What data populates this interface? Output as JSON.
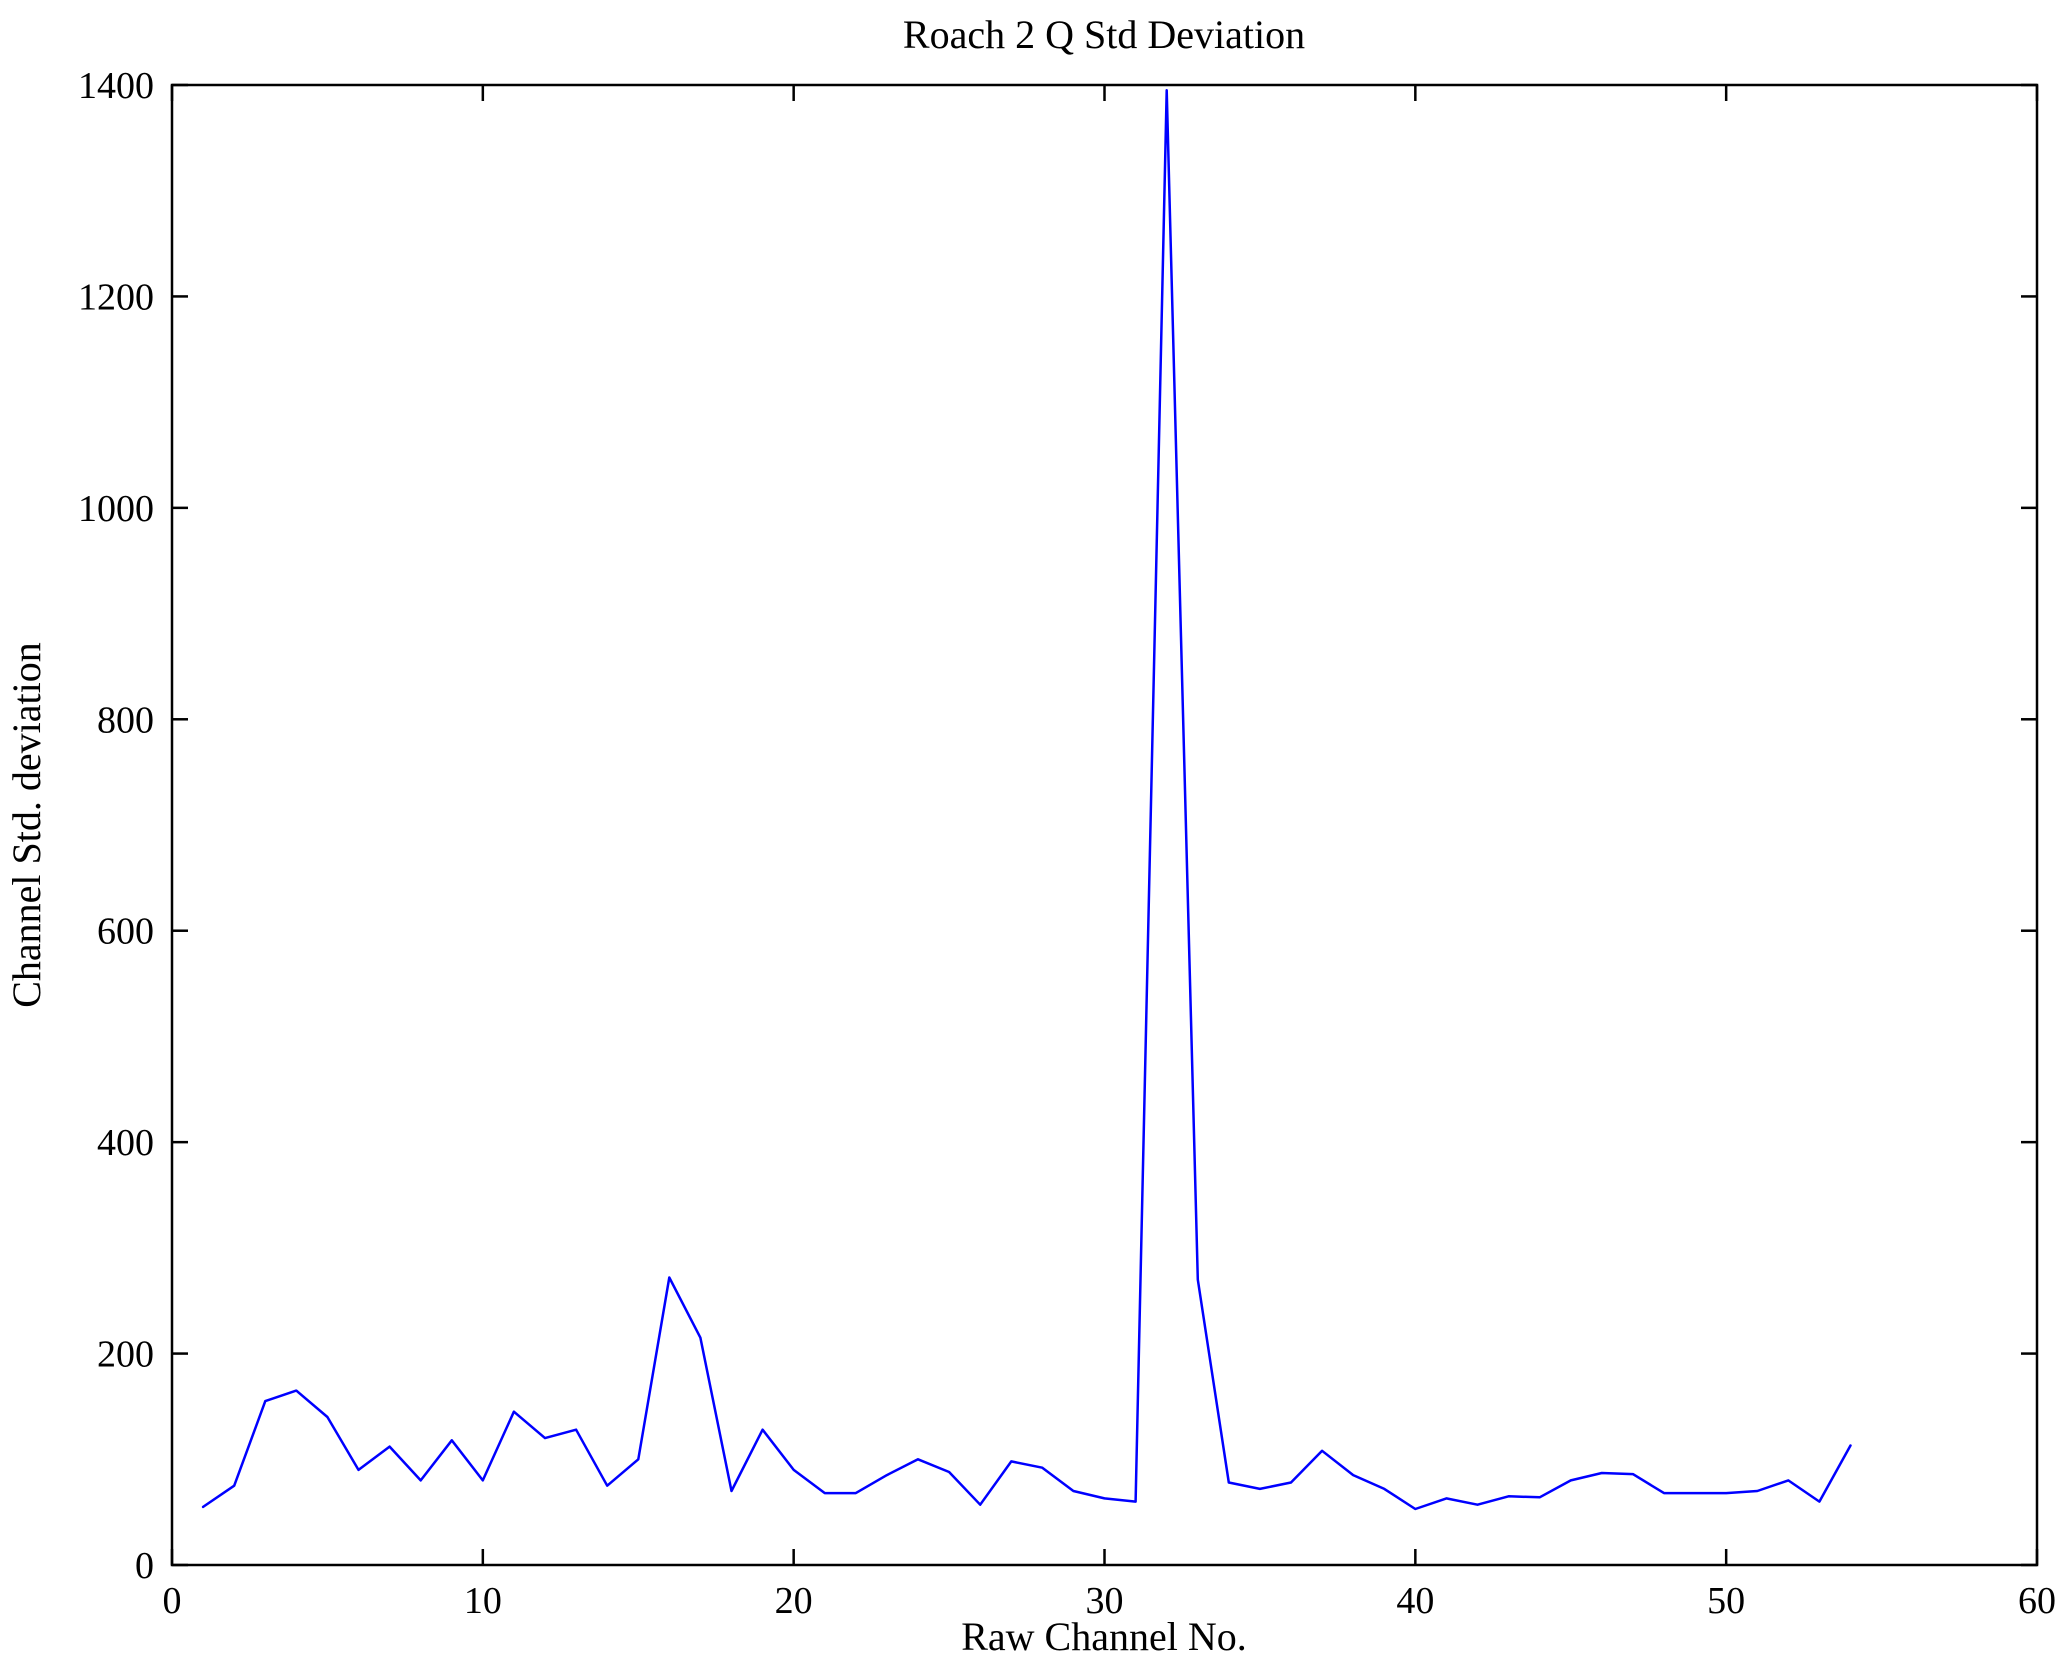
{
  "figure": {
    "background": "#ffffff",
    "axis_color": "#000000",
    "text_color": "#000000"
  },
  "chart_data": {
    "type": "line",
    "title": "Roach 2 Q Std Deviation",
    "xlabel": "Raw Channel No.",
    "ylabel": "Channel Std. deviation",
    "xlim": [
      0,
      60
    ],
    "ylim": [
      0,
      1400
    ],
    "xticks": [
      0,
      10,
      20,
      30,
      40,
      50,
      60
    ],
    "yticks": [
      0,
      200,
      400,
      600,
      800,
      1000,
      1200,
      1400
    ],
    "grid": false,
    "legend": null,
    "series": [
      {
        "name": "channel-std-deviation",
        "color": "#0000ff",
        "x": [
          1,
          2,
          3,
          4,
          5,
          6,
          7,
          8,
          9,
          10,
          11,
          12,
          13,
          14,
          15,
          16,
          17,
          18,
          19,
          20,
          21,
          22,
          23,
          24,
          25,
          26,
          27,
          28,
          29,
          30,
          31,
          32,
          33,
          34,
          35,
          36,
          37,
          38,
          39,
          40,
          41,
          42,
          43,
          44,
          45,
          46,
          47,
          48,
          49,
          50,
          51,
          52,
          53,
          54
        ],
        "y": [
          55,
          75,
          155,
          165,
          140,
          90,
          112,
          80,
          118,
          80,
          145,
          120,
          128,
          75,
          100,
          272,
          215,
          70,
          128,
          90,
          68,
          68,
          85,
          100,
          88,
          57,
          98,
          92,
          70,
          63,
          60,
          1395,
          270,
          78,
          72,
          78,
          108,
          85,
          72,
          53,
          63,
          57,
          65,
          64,
          80,
          87,
          86,
          68,
          68,
          68,
          70,
          80,
          60,
          113
        ]
      }
    ]
  }
}
